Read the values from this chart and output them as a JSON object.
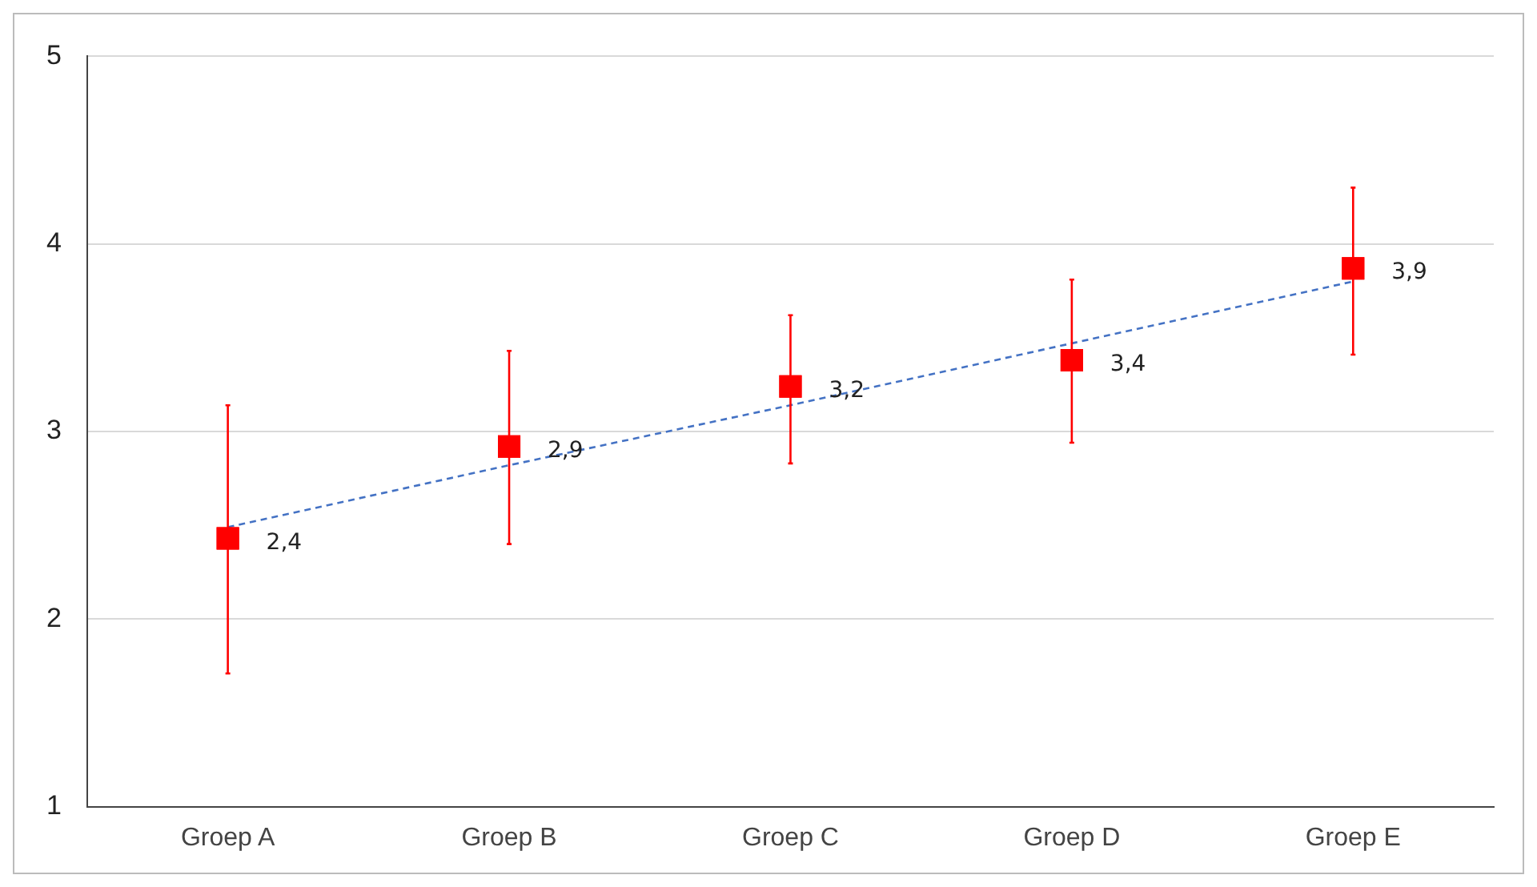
{
  "chart_data": {
    "type": "scatter",
    "categories": [
      "Groep A",
      "Groep B",
      "Groep C",
      "Groep D",
      "Groep E"
    ],
    "series": [
      {
        "type": "line",
        "color": "#4472c4",
        "values": [
          2.49,
          2.82,
          3.14,
          3.47,
          3.8
        ],
        "marker": "none",
        "line_style": "dashed"
      },
      {
        "color": "#ff0000",
        "values": [
          2.43,
          2.92,
          3.24,
          3.38,
          3.87
        ],
        "marker": "square",
        "errors": [
          [
            1.71,
            3.14
          ],
          [
            2.4,
            3.43
          ],
          [
            2.83,
            3.62
          ],
          [
            2.94,
            3.81
          ],
          [
            3.41,
            4.3
          ]
        ],
        "value_labels": [
          "2,4",
          "2,9",
          "3,2",
          "3,4",
          "3,9"
        ]
      }
    ],
    "ylim": [
      1,
      5
    ],
    "yticks": [
      1,
      2,
      3,
      4,
      5
    ],
    "grid": "y"
  }
}
